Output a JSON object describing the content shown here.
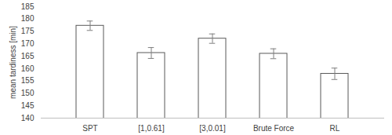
{
  "chart_data": {
    "type": "bar",
    "categories": [
      "SPT",
      "[1,0.61]",
      "[3,0.01]",
      "Brute Force",
      "RL"
    ],
    "values": [
      177.3,
      166.3,
      172.1,
      166.0,
      157.9
    ],
    "errors": [
      1.9,
      2.2,
      1.9,
      2.0,
      2.3
    ],
    "color": "#ffffff",
    "y_label": "mean tardiness [min]",
    "ylim": [
      140,
      185
    ],
    "yticks": [
      140,
      145,
      150,
      155,
      160,
      165,
      170,
      175,
      180,
      185
    ],
    "grid": false
  }
}
